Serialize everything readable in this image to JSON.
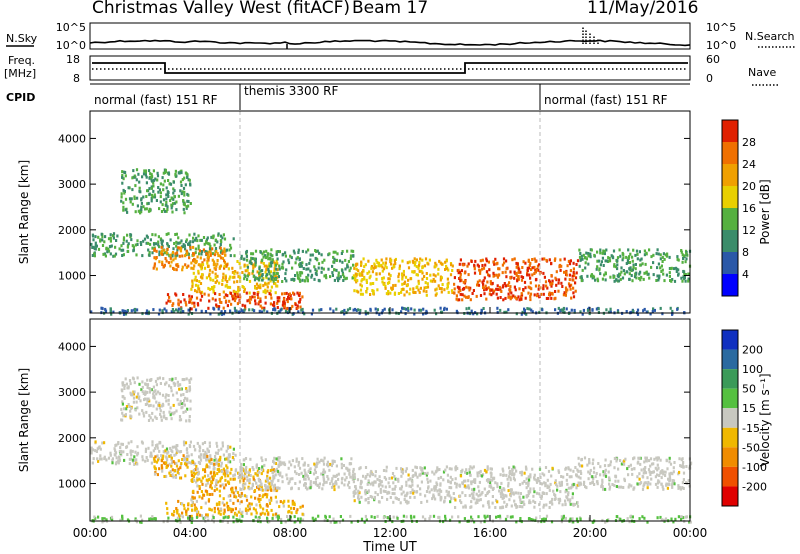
{
  "header": {
    "station": "Christmas Valley West (fitACF)",
    "beam": "Beam 17",
    "date": "11/May/2016"
  },
  "strip_labels": {
    "nsky": "N.Sky",
    "nsearch": "N.Search",
    "freq_line1": "Freq.",
    "freq_line2": "[MHz]",
    "nave": "Nave",
    "cpid": "CPID"
  },
  "cpid_segments": [
    {
      "label": "normal (fast) 151 RF",
      "start_h": 0,
      "end_h": 6
    },
    {
      "label": "themis 3300 RF",
      "start_h": 6,
      "end_h": 18
    },
    {
      "label": "normal (fast) 151 RF",
      "start_h": 18,
      "end_h": 24
    }
  ],
  "x_axis": {
    "label": "Time UT",
    "ticks": [
      "00:00",
      "04:00",
      "08:00",
      "12:00",
      "16:00",
      "20:00",
      "00:00"
    ],
    "range_h": [
      0,
      24
    ]
  },
  "noise_axis": {
    "left_ticks": [
      "10^5",
      "10^0"
    ],
    "right_ticks": [
      "10^5",
      "10^0"
    ]
  },
  "freq_axis": {
    "left_ticks": [
      "18",
      "8"
    ],
    "right_ticks": [
      "60",
      "0"
    ]
  },
  "panels": {
    "power": {
      "ylabel": "Slant Range [km]",
      "cbar_label": "Power [dB]",
      "cbar_ticks": [
        "4",
        "8",
        "12",
        "16",
        "20",
        "24",
        "28"
      ]
    },
    "velocity": {
      "ylabel": "Slant Range [km]",
      "cbar_label": "Velocity [m s⁻¹]",
      "cbar_ticks": [
        "200",
        "100",
        "50",
        "15",
        "-15",
        "-50",
        "-100",
        "-200"
      ]
    }
  },
  "colors": {
    "power_scale": [
      "#0000ff",
      "#2a58a8",
      "#3a8c6a",
      "#55b040",
      "#e8d000",
      "#f0a000",
      "#f07000",
      "#e02000"
    ],
    "velocity_scale": [
      "#e00000",
      "#f05000",
      "#f08c00",
      "#f0b800",
      "#c8c8c0",
      "#55c040",
      "#3a9a58",
      "#2a6aa0",
      "#1030c0"
    ]
  },
  "chart_data": [
    {
      "type": "heatmap",
      "title": "Power",
      "xlabel": "Time UT",
      "ylabel": "Slant Range [km]",
      "xlim": [
        0,
        24
      ],
      "ylim": [
        180,
        4600
      ],
      "yticks": [
        1000,
        2000,
        3000,
        4000
      ],
      "features": [
        {
          "t0": 0.0,
          "t1": 5.8,
          "r0": 1450,
          "r1": 1950,
          "level": 12
        },
        {
          "t0": 1.2,
          "t1": 4.0,
          "r0": 2400,
          "r1": 3350,
          "level": 12
        },
        {
          "t0": 2.5,
          "t1": 5.5,
          "r0": 1150,
          "r1": 1650,
          "level": 24
        },
        {
          "t0": 4.0,
          "t1": 7.5,
          "r0": 650,
          "r1": 1350,
          "level": 20
        },
        {
          "t0": 3.0,
          "t1": 8.5,
          "r0": 300,
          "r1": 650,
          "level": 28
        },
        {
          "t0": 6.0,
          "t1": 10.5,
          "r0": 900,
          "r1": 1600,
          "level": 12
        },
        {
          "t0": 10.5,
          "t1": 14.5,
          "r0": 600,
          "r1": 1400,
          "level": 20
        },
        {
          "t0": 14.5,
          "t1": 19.5,
          "r0": 500,
          "r1": 1400,
          "level": 28
        },
        {
          "t0": 19.5,
          "t1": 24.0,
          "r0": 900,
          "r1": 1600,
          "level": 12
        },
        {
          "t0": 0.0,
          "t1": 24.0,
          "r0": 180,
          "r1": 320,
          "level": 8
        }
      ]
    },
    {
      "type": "heatmap",
      "title": "Velocity",
      "xlabel": "Time UT",
      "ylabel": "Slant Range [km]",
      "xlim": [
        0,
        24
      ],
      "ylim": [
        180,
        4600
      ],
      "yticks": [
        1000,
        2000,
        3000,
        4000
      ],
      "features": [
        {
          "t0": 0.0,
          "t1": 5.8,
          "r0": 1450,
          "r1": 1950,
          "vel": 0
        },
        {
          "t0": 1.2,
          "t1": 4.0,
          "r0": 2400,
          "r1": 3350,
          "vel": 0
        },
        {
          "t0": 2.5,
          "t1": 5.5,
          "r0": 1150,
          "r1": 1650,
          "vel": -50
        },
        {
          "t0": 4.0,
          "t1": 7.5,
          "r0": 650,
          "r1": 1350,
          "vel": -50
        },
        {
          "t0": 3.0,
          "t1": 8.5,
          "r0": 300,
          "r1": 650,
          "vel": -50
        },
        {
          "t0": 6.0,
          "t1": 10.5,
          "r0": 900,
          "r1": 1600,
          "vel": 0
        },
        {
          "t0": 10.5,
          "t1": 14.5,
          "r0": 600,
          "r1": 1400,
          "vel": 0
        },
        {
          "t0": 14.5,
          "t1": 19.5,
          "r0": 500,
          "r1": 1400,
          "vel": 0
        },
        {
          "t0": 19.5,
          "t1": 24.0,
          "r0": 900,
          "r1": 1600,
          "vel": 0
        },
        {
          "t0": 0.0,
          "t1": 24.0,
          "r0": 180,
          "r1": 320,
          "vel": 15
        }
      ]
    }
  ]
}
